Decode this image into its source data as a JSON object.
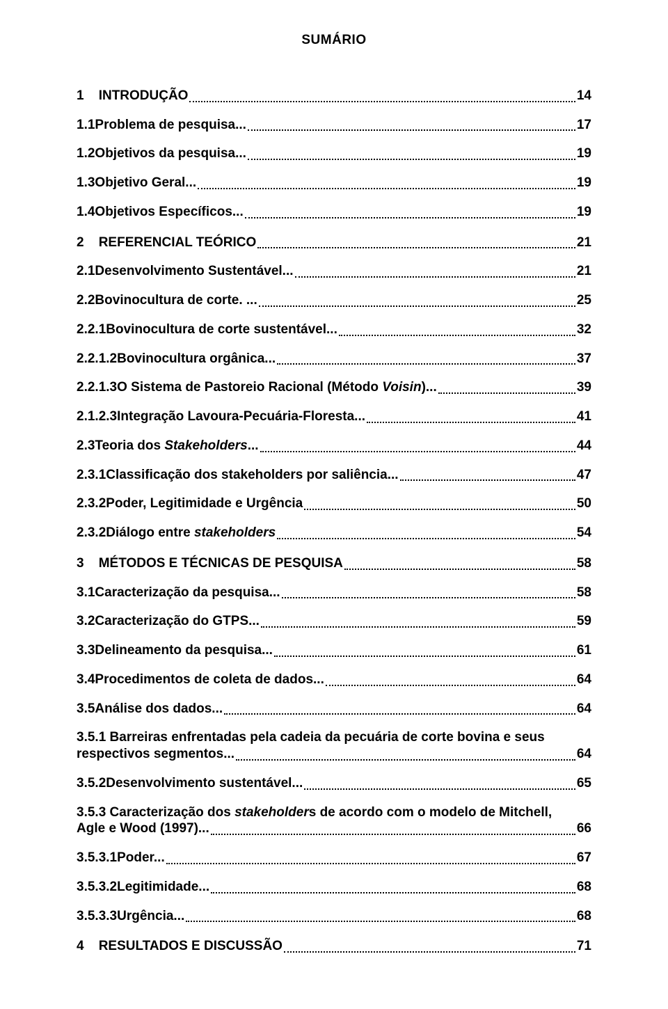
{
  "title": "SUMÁRIO",
  "entries": [
    {
      "num": "1",
      "title": "INTRODUÇÃO",
      "page": "14",
      "top_level": true,
      "extra_space": false
    },
    {
      "num": "1.1",
      "title": "Problema de pesquisa...",
      "page": "17"
    },
    {
      "num": "1.2",
      "title": "Objetivos da pesquisa...",
      "page": "19"
    },
    {
      "num": "1.3",
      "title": "Objetivo Geral...",
      "page": "19"
    },
    {
      "num": "1.4",
      "title": "Objetivos Específicos...",
      "page": "19"
    },
    {
      "num": "2",
      "title": "REFERENCIAL TEÓRICO",
      "page": "21",
      "top_level": true,
      "extra_space": true
    },
    {
      "num": "2.1",
      "title": "Desenvolvimento Sustentável...",
      "page": "21"
    },
    {
      "num": "2.2",
      "title": "Bovinocultura de corte. ...",
      "page": "25"
    },
    {
      "num": "2.2.1",
      "title": "Bovinocultura de corte sustentável...",
      "page": "32"
    },
    {
      "num": "2.2.1.2",
      "title": "Bovinocultura orgânica... ",
      "page": "37"
    },
    {
      "num": "2.2.1.3",
      "title": "O Sistema de Pastoreio Racional (Método ",
      "italic_tail": "Voisin",
      "after_italic": ")...",
      "page": "39"
    },
    {
      "num": "2.1.2.3",
      "title": "Integração Lavoura-Pecuária-Floresta... ",
      "page": "41"
    },
    {
      "num": "2.3",
      "title": "Teoria dos ",
      "italic_tail": "Stakeholders",
      "after_italic": "...",
      "page": "44"
    },
    {
      "num": "2.3.1",
      "title": "Classificação dos stakeholders por saliência...",
      "page": "47"
    },
    {
      "num": "2.3.2",
      "title": "Poder, Legitimidade e Urgência",
      "page": "50"
    },
    {
      "num": "2.3.2",
      "title": "Diálogo entre ",
      "italic_tail": "stakeholders",
      "after_italic": "",
      "page": "54"
    },
    {
      "num": "3",
      "title": "MÉTODOS E TÉCNICAS DE PESQUISA",
      "page": "58",
      "top_level": true,
      "extra_space": true
    },
    {
      "num": "3.1",
      "title": "Caracterização da pesquisa...",
      "page": "58"
    },
    {
      "num": "3.2",
      "title": "Caracterização do GTPS...",
      "page": "59"
    },
    {
      "num": "3.3",
      "title": "Delineamento da pesquisa... ",
      "page": "61"
    },
    {
      "num": "3.4",
      "title": "Procedimentos de coleta de dados... ",
      "page": "64"
    },
    {
      "num": "3.5",
      "title": "Análise dos dados...",
      "page": "64"
    }
  ],
  "wrap_entries": [
    {
      "first_line": "3.5.1 Barreiras enfrentadas pela cadeia da pecuária de corte bovina e seus",
      "last_prefix": "respectivos segmentos...",
      "page": "64"
    }
  ],
  "entries2": [
    {
      "num": "3.5.2",
      "title": "Desenvolvimento sustentável... ",
      "page": "65"
    }
  ],
  "wrap_entries2": [
    {
      "first_line_pre": "3.5.3 Caracterização dos ",
      "first_line_italic": "stakeholder",
      "first_line_post": "s de acordo com o modelo de Mitchell,",
      "last_prefix": "Agle e Wood (1997)... ",
      "page": "66"
    }
  ],
  "entries3": [
    {
      "num": "3.5.3.1",
      "title": "Poder... ",
      "page": "67"
    },
    {
      "num": "3.5.3.2",
      "title": "Legitimidade...",
      "page": "68"
    },
    {
      "num": "3.5.3.3",
      "title_nospace": "Urgência...",
      "page": "68"
    },
    {
      "num": "4",
      "title": "RESULTADOS E DISCUSSÃO",
      "page": "71",
      "top_level": true,
      "extra_space": true
    }
  ]
}
